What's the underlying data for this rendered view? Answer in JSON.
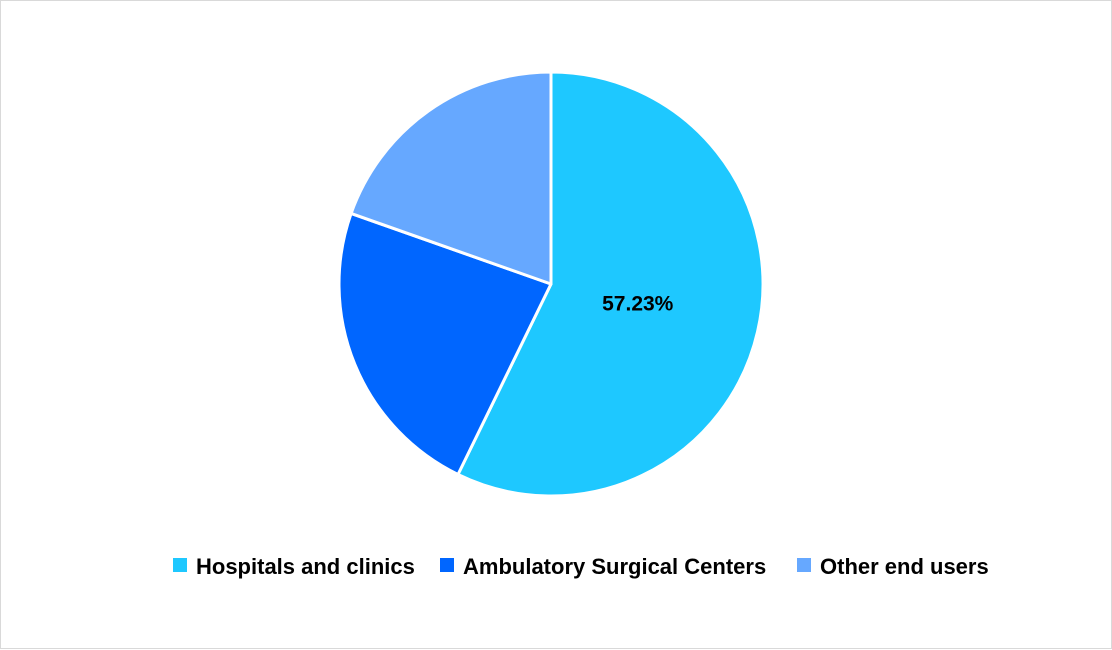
{
  "chart_data": {
    "type": "pie",
    "title": "",
    "labels": [
      "Hospitals and clinics",
      "Ambulatory Surgical Centers",
      "Other end users"
    ],
    "values": [
      57.23,
      23.17,
      19.6
    ],
    "colors": [
      "#1EC8FF",
      "#0066FF",
      "#66A8FF"
    ],
    "data_labels": [
      "57.23%",
      "",
      ""
    ],
    "legend": {
      "position": "bottom",
      "entries": [
        "Hospitals and clinics",
        "Ambulatory Surgical Centers",
        "Other end users"
      ]
    }
  }
}
